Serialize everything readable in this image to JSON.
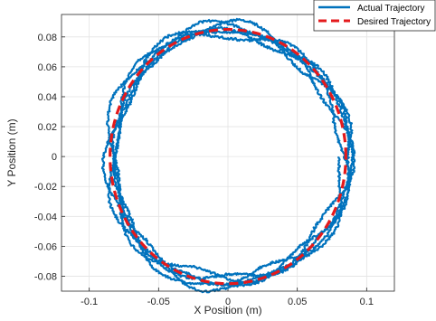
{
  "chart_data": {
    "type": "line",
    "xlabel": "X Position (m)",
    "ylabel": "Y Position (m)",
    "xlim": [
      -0.12,
      0.12
    ],
    "ylim": [
      -0.09,
      0.095
    ],
    "x_ticks": [
      -0.1,
      -0.05,
      0,
      0.05,
      0.1
    ],
    "x_tick_labels": [
      "-0.1",
      "-0.05",
      "0",
      "0.05",
      "0.1"
    ],
    "y_ticks": [
      -0.08,
      -0.06,
      -0.04,
      -0.02,
      0,
      0.02,
      0.04,
      0.06,
      0.08
    ],
    "y_tick_labels": [
      "-0.08",
      "-0.06",
      "-0.04",
      "-0.02",
      "0",
      "0.02",
      "0.04",
      "0.06",
      "0.08"
    ],
    "grid": true,
    "legend_position": "top-right",
    "series": [
      {
        "name": "Actual Trajectory",
        "color": "#0072BD",
        "style": "solid",
        "shape": "noisy circle, several laps",
        "center": [
          0,
          0
        ],
        "radius_range": [
          0.078,
          0.092
        ],
        "laps": 5
      },
      {
        "name": "Desired Trajectory",
        "color": "#E41A1C",
        "style": "dashed",
        "shape": "circle",
        "center": [
          0,
          0
        ],
        "radius": 0.085
      }
    ]
  }
}
